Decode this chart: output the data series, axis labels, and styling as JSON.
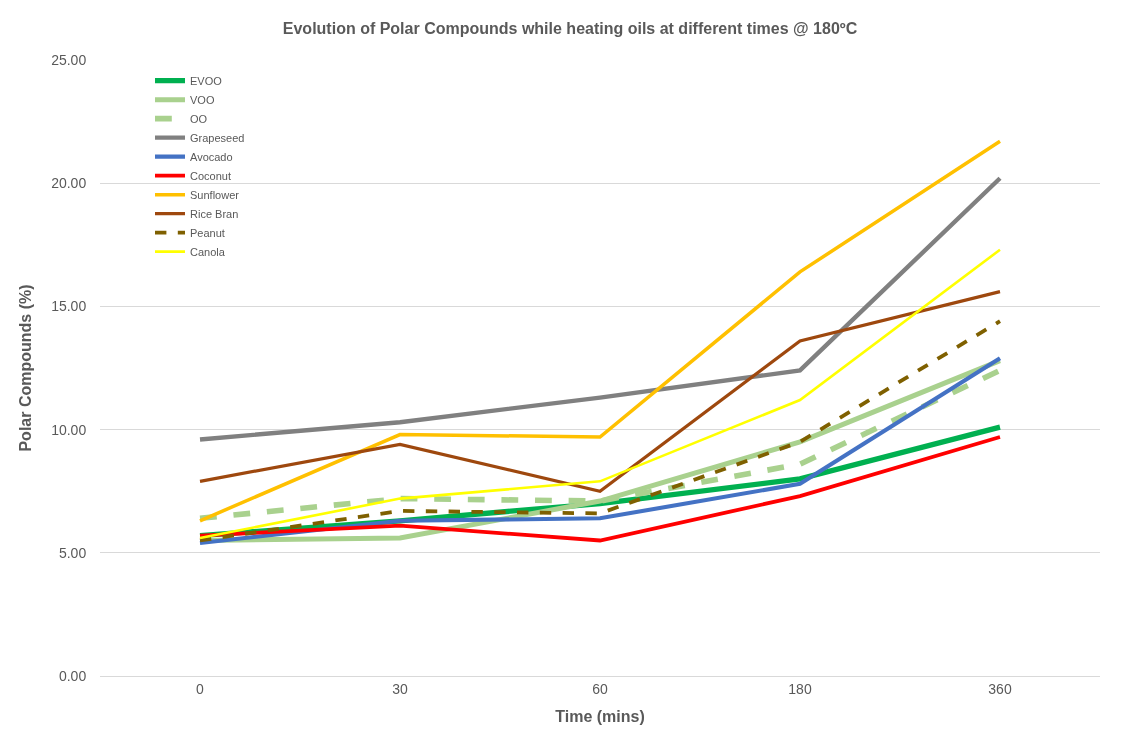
{
  "chart_data": {
    "type": "line",
    "title": "Evolution of Polar Compounds while heating oils at different times @ 180ºC",
    "xlabel": "Time (mins)",
    "ylabel": "Polar Compounds (%)",
    "categories": [
      "0",
      "30",
      "60",
      "180",
      "360"
    ],
    "ylim": [
      0,
      25
    ],
    "yticks": [
      {
        "value": 0,
        "label": "0.00"
      },
      {
        "value": 5,
        "label": "5.00"
      },
      {
        "value": 10,
        "label": "10.00"
      },
      {
        "value": 15,
        "label": "15.00"
      },
      {
        "value": 20,
        "label": "20.00"
      },
      {
        "value": 25,
        "label": "25.00"
      }
    ],
    "grid": "y",
    "legend": "top left",
    "marker": "none",
    "series": [
      {
        "name": "EVOO",
        "color": "#00b050",
        "line_style": "solid",
        "values": [
          5.7,
          6.3,
          7.0,
          8.0,
          10.1
        ]
      },
      {
        "name": "VOO",
        "color": "#a9d18e",
        "line_style": "solid",
        "values": [
          5.5,
          5.6,
          7.1,
          9.5,
          12.8
        ]
      },
      {
        "name": "OO",
        "color": "#a9d18e",
        "line_style": "dashed",
        "values": [
          6.4,
          7.2,
          7.1,
          8.6,
          12.4
        ]
      },
      {
        "name": "Grapeseed",
        "color": "#808080",
        "line_style": "solid",
        "values": [
          9.6,
          10.3,
          11.3,
          12.4,
          20.2
        ]
      },
      {
        "name": "Avocado",
        "color": "#4472c4",
        "line_style": "solid",
        "values": [
          5.4,
          6.3,
          6.4,
          7.8,
          12.9
        ]
      },
      {
        "name": "Coconut",
        "color": "#ff0000",
        "line_style": "solid",
        "values": [
          5.7,
          6.1,
          5.5,
          7.3,
          9.7
        ]
      },
      {
        "name": "Sunflower",
        "color": "#ffc000",
        "line_style": "solid",
        "values": [
          6.3,
          9.8,
          9.7,
          16.4,
          21.7
        ]
      },
      {
        "name": "Rice Bran",
        "color": "#9e480e",
        "line_style": "solid",
        "values": [
          7.9,
          9.4,
          7.5,
          13.6,
          15.6
        ]
      },
      {
        "name": "Peanut",
        "color": "#7f6000",
        "line_style": "dashed",
        "values": [
          5.5,
          6.7,
          6.6,
          9.5,
          14.4
        ]
      },
      {
        "name": "Canola",
        "color": "#ffff00",
        "line_style": "solid",
        "values": [
          5.6,
          7.2,
          7.9,
          11.2,
          17.3
        ]
      }
    ]
  }
}
